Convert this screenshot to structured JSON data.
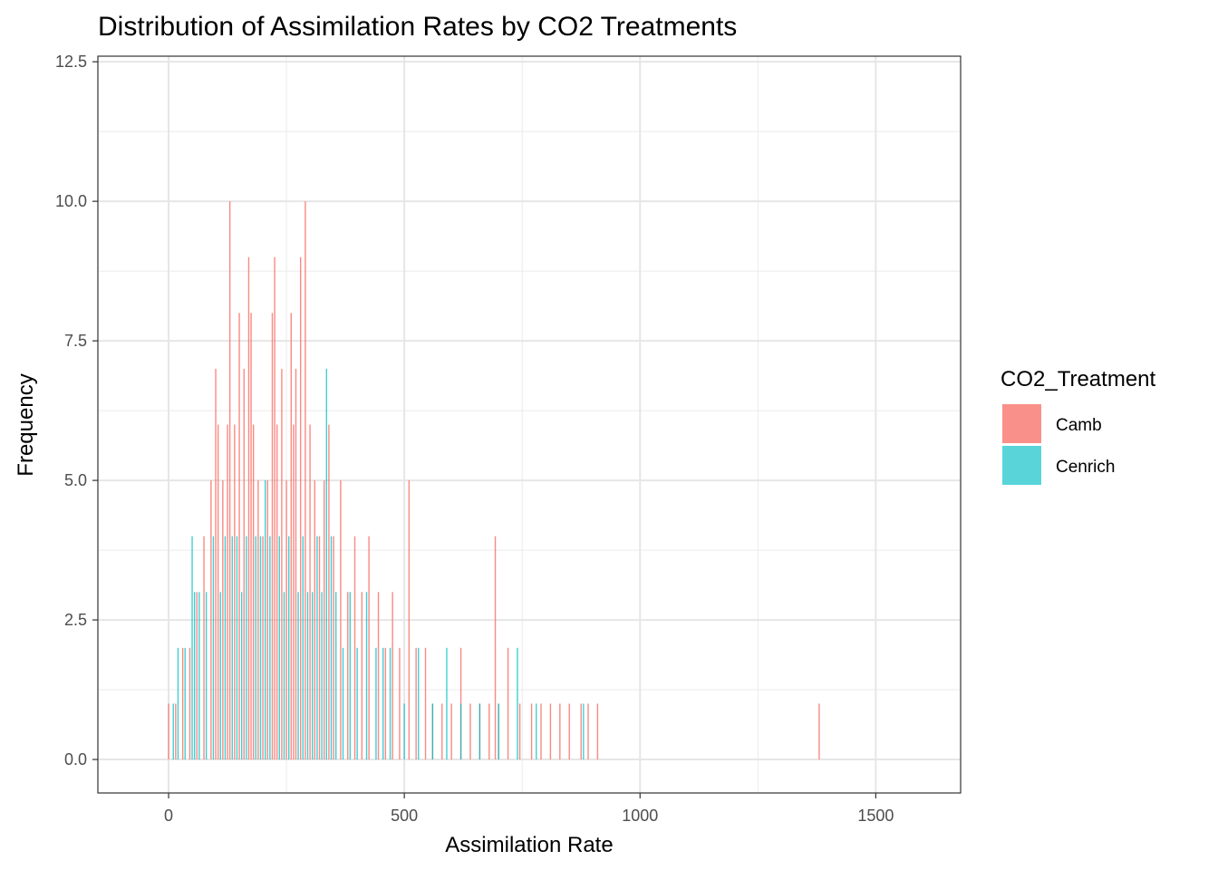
{
  "chart_data": {
    "type": "bar",
    "title": "Distribution of Assimilation Rates by CO2 Treatments",
    "xlabel": "Assimilation Rate",
    "ylabel": "Frequency",
    "xlim": [
      -150,
      1680
    ],
    "ylim": [
      -0.6,
      12.6
    ],
    "x_ticks": [
      0,
      500,
      1000,
      1500
    ],
    "x_tick_labels": [
      "0",
      "500",
      "1000",
      "1500"
    ],
    "y_ticks": [
      0,
      2.5,
      5,
      7.5,
      10,
      12.5
    ],
    "y_tick_labels": [
      "0.0",
      "2.5",
      "5.0",
      "7.5",
      "10.0",
      "12.5"
    ],
    "grid": true,
    "legend": {
      "title": "CO2_Treatment",
      "position": "right",
      "entries": [
        "Camb",
        "Cenrich"
      ]
    },
    "colors": {
      "Camb": "#F8766D",
      "Cenrich": "#00BFC4"
    },
    "series": [
      {
        "name": "Camb",
        "x": [
          0,
          15,
          30,
          45,
          60,
          75,
          90,
          100,
          105,
          115,
          125,
          130,
          140,
          150,
          160,
          170,
          175,
          180,
          190,
          200,
          210,
          220,
          225,
          230,
          240,
          250,
          260,
          265,
          270,
          280,
          290,
          300,
          310,
          320,
          330,
          340,
          350,
          365,
          380,
          395,
          410,
          425,
          445,
          460,
          475,
          490,
          510,
          525,
          545,
          560,
          580,
          600,
          620,
          640,
          660,
          680,
          693,
          700,
          720,
          745,
          770,
          790,
          810,
          830,
          850,
          875,
          890,
          910,
          1380
        ],
        "values": [
          1,
          1,
          2,
          2,
          3,
          4,
          5,
          7,
          6,
          5,
          6,
          10,
          6,
          8,
          7,
          9,
          8,
          6,
          5,
          4,
          5,
          8,
          9,
          6,
          7,
          5,
          8,
          6,
          7,
          9,
          10,
          6,
          5,
          4,
          5,
          6,
          4,
          5,
          3,
          4,
          3,
          4,
          3,
          2,
          3,
          2,
          5,
          2,
          2,
          1,
          1,
          1,
          2,
          1,
          1,
          1,
          4,
          1,
          2,
          1,
          1,
          1,
          1,
          1,
          1,
          1,
          1,
          1,
          1
        ]
      },
      {
        "name": "Cenrich",
        "x": [
          10,
          20,
          35,
          50,
          55,
          65,
          80,
          95,
          110,
          120,
          135,
          145,
          155,
          165,
          185,
          195,
          205,
          215,
          235,
          245,
          255,
          275,
          285,
          295,
          305,
          315,
          325,
          335,
          345,
          355,
          370,
          385,
          400,
          420,
          440,
          455,
          470,
          500,
          530,
          560,
          590,
          620,
          660,
          700,
          740,
          780,
          880
        ],
        "values": [
          1,
          2,
          2,
          4,
          3,
          3,
          3,
          4,
          3,
          4,
          4,
          4,
          3,
          4,
          4,
          4,
          5,
          4,
          4,
          3,
          4,
          3,
          4,
          3,
          3,
          4,
          3,
          7,
          4,
          3,
          2,
          3,
          2,
          3,
          2,
          2,
          2,
          1,
          2,
          1,
          2,
          1,
          1,
          1,
          2,
          1,
          1
        ]
      }
    ]
  }
}
